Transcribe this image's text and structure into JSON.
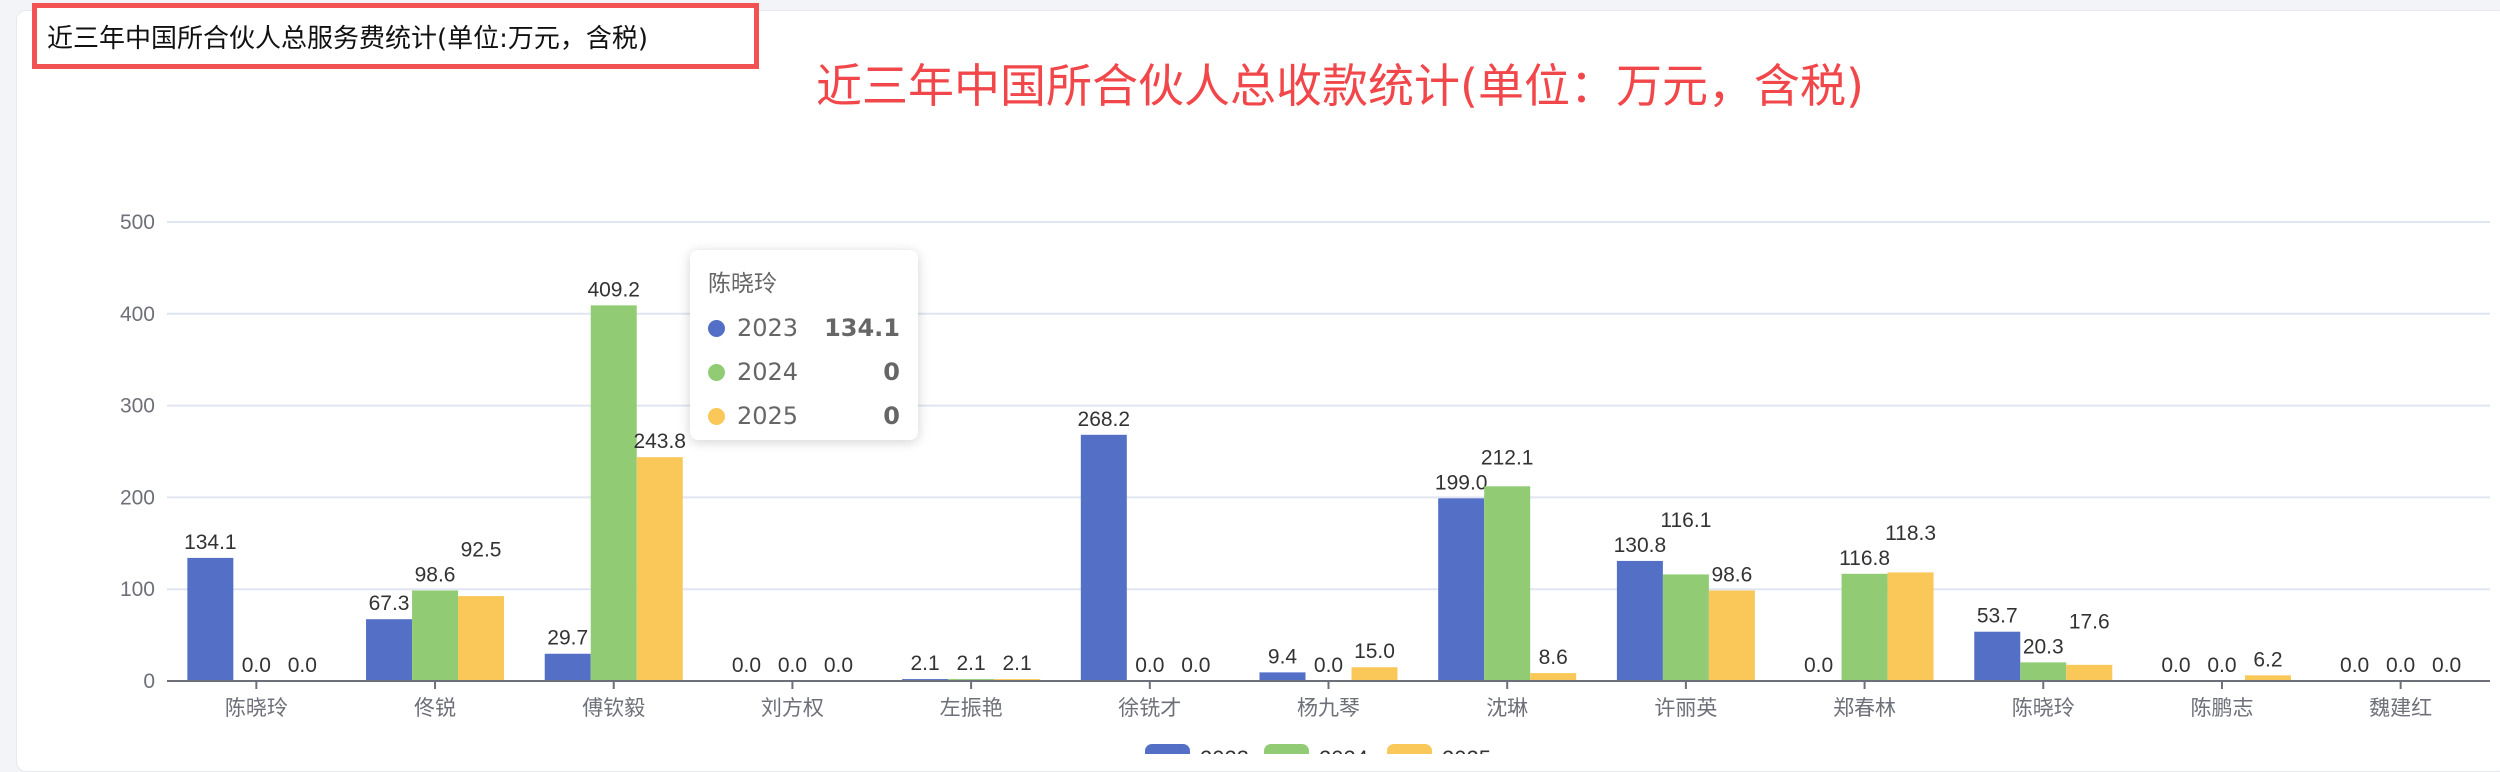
{
  "header": {
    "title": "近三年中国所合伙人总服务费统计(单位:万元，含税)",
    "annotation": "近三年中国所合伙人总收款统计(单位：万元，含税)"
  },
  "colors": {
    "2023": "#5470c6",
    "2024": "#91cc75",
    "2025": "#fac858",
    "annotation": "#f2474a"
  },
  "chart_data": {
    "type": "bar",
    "categories": [
      "陈晓玲",
      "佟锐",
      "傅钦毅",
      "刘方权",
      "左振艳",
      "徐铣才",
      "杨九琴",
      "沈琳",
      "许丽英",
      "郑春林",
      "陈晓玲",
      "陈鹏志",
      "魏建红"
    ],
    "series": [
      {
        "name": "2023",
        "values": [
          134.1,
          67.3,
          29.7,
          0.0,
          2.1,
          268.2,
          9.4,
          199.0,
          130.8,
          0.0,
          53.7,
          0.0,
          0.0
        ]
      },
      {
        "name": "2024",
        "values": [
          0.0,
          98.6,
          409.2,
          0.0,
          2.1,
          0.0,
          0.0,
          212.1,
          116.1,
          116.8,
          20.3,
          0.0,
          0.0
        ]
      },
      {
        "name": "2025",
        "values": [
          0.0,
          92.5,
          243.8,
          0.0,
          2.1,
          0.0,
          15.0,
          8.6,
          98.6,
          118.3,
          17.6,
          6.2,
          0.0
        ]
      }
    ],
    "yticks": [
      "0",
      "100",
      "200",
      "300",
      "400",
      "500"
    ],
    "ylim": [
      0,
      500
    ],
    "grid": true,
    "legend": "bottom"
  },
  "tooltip": {
    "title": "陈晓玲",
    "rows": [
      {
        "name": "2023",
        "value": "134.1"
      },
      {
        "name": "2024",
        "value": "0"
      },
      {
        "name": "2025",
        "value": "0"
      }
    ]
  }
}
